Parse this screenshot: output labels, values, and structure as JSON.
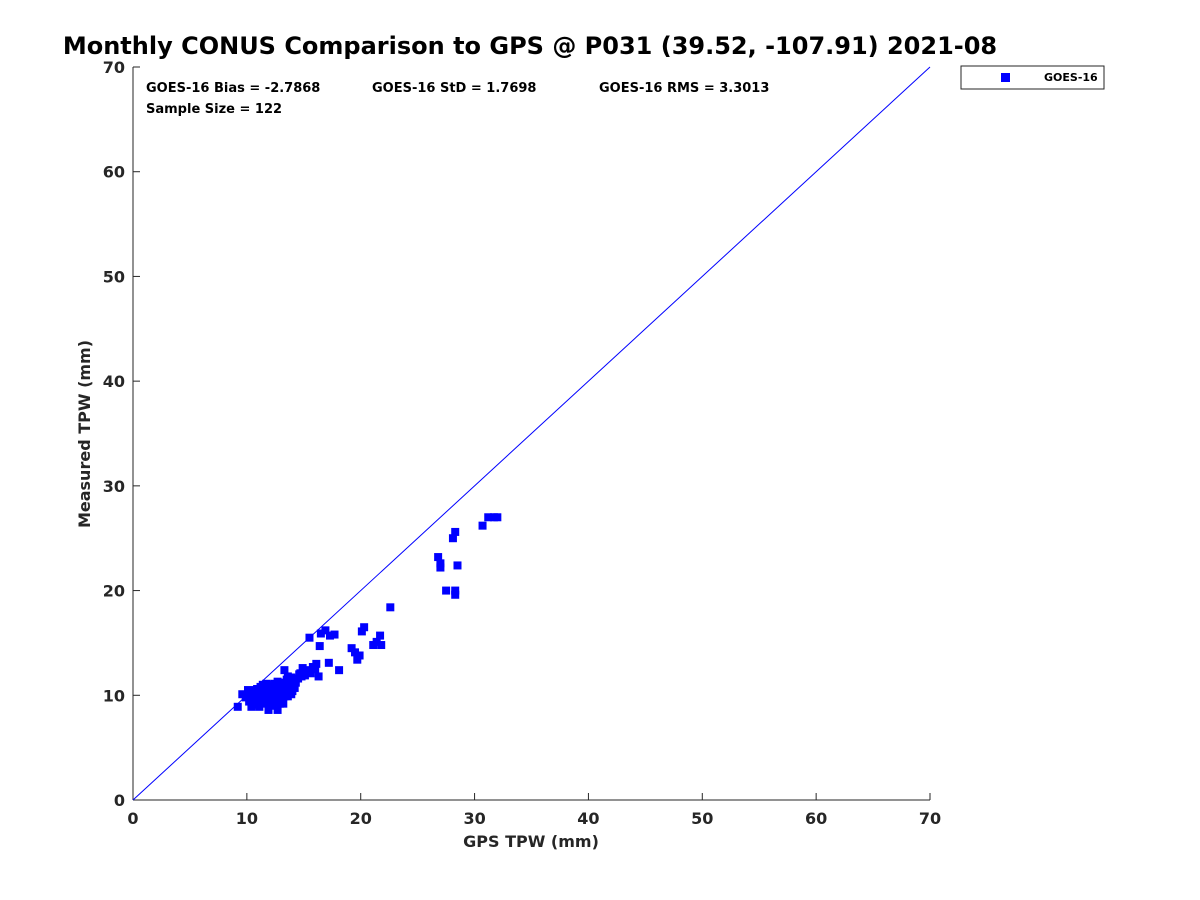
{
  "chart_data": {
    "type": "scatter",
    "title": "Monthly CONUS Comparison to GPS @ P031 (39.52, -107.91) 2021-08",
    "xlabel": "GPS TPW (mm)",
    "ylabel": "Measured TPW (mm)",
    "xlim": [
      0,
      70
    ],
    "ylim": [
      0,
      70
    ],
    "xticks": [
      "0",
      "10",
      "20",
      "30",
      "40",
      "50",
      "60",
      "70"
    ],
    "yticks": [
      "0",
      "10",
      "20",
      "30",
      "40",
      "50",
      "60",
      "70"
    ],
    "grid": false,
    "legend_position": "outside-top-right",
    "reference_line": {
      "from": [
        0,
        0
      ],
      "to": [
        70,
        70
      ],
      "color": "#0000ff"
    },
    "stats": {
      "bias": "GOES-16 Bias = -2.7868",
      "std": "GOES-16 StD = 1.7698",
      "rms": "GOES-16 RMS = 3.3013",
      "sample": "Sample Size = 122"
    },
    "series": [
      {
        "name": "GOES-16",
        "color": "#0000ff",
        "marker": "square",
        "points": [
          [
            9.2,
            8.9
          ],
          [
            9.6,
            10.1
          ],
          [
            9.9,
            9.8
          ],
          [
            10.1,
            10.5
          ],
          [
            10.2,
            9.4
          ],
          [
            10.4,
            8.9
          ],
          [
            10.5,
            10.2
          ],
          [
            10.6,
            9.7
          ],
          [
            10.8,
            10.5
          ],
          [
            10.9,
            9.1
          ],
          [
            11.0,
            10.0
          ],
          [
            11.1,
            8.9
          ],
          [
            11.2,
            10.8
          ],
          [
            11.3,
            9.6
          ],
          [
            11.4,
            10.3
          ],
          [
            11.5,
            9.2
          ],
          [
            11.6,
            10.6
          ],
          [
            11.7,
            11.1
          ],
          [
            11.8,
            9.9
          ],
          [
            11.9,
            8.6
          ],
          [
            12.0,
            10.4
          ],
          [
            12.1,
            9.5
          ],
          [
            12.2,
            11.0
          ],
          [
            12.3,
            10.1
          ],
          [
            12.4,
            9.3
          ],
          [
            12.5,
            10.7
          ],
          [
            12.6,
            9.9
          ],
          [
            12.7,
            8.6
          ],
          [
            12.8,
            11.2
          ],
          [
            12.9,
            10.4
          ],
          [
            13.0,
            9.6
          ],
          [
            13.1,
            10.9
          ],
          [
            13.2,
            9.2
          ],
          [
            13.3,
            12.4
          ],
          [
            13.4,
            10.6
          ],
          [
            13.5,
            11.5
          ],
          [
            13.6,
            9.9
          ],
          [
            13.7,
            10.3
          ],
          [
            13.8,
            11.0
          ],
          [
            13.9,
            10.1
          ],
          [
            14.0,
            11.4
          ],
          [
            14.2,
            10.7
          ],
          [
            14.5,
            11.6
          ],
          [
            14.7,
            12.1
          ],
          [
            14.9,
            12.6
          ],
          [
            15.1,
            11.9
          ],
          [
            15.3,
            12.4
          ],
          [
            15.5,
            15.5
          ],
          [
            15.8,
            12.7
          ],
          [
            16.1,
            13.0
          ],
          [
            16.3,
            11.8
          ],
          [
            16.4,
            14.7
          ],
          [
            16.5,
            15.9
          ],
          [
            16.9,
            16.2
          ],
          [
            17.2,
            13.1
          ],
          [
            17.3,
            15.7
          ],
          [
            17.7,
            15.8
          ],
          [
            18.1,
            12.4
          ],
          [
            19.2,
            14.5
          ],
          [
            19.5,
            14.1
          ],
          [
            19.7,
            13.4
          ],
          [
            19.9,
            13.8
          ],
          [
            20.1,
            16.1
          ],
          [
            20.3,
            16.5
          ],
          [
            21.1,
            14.8
          ],
          [
            21.4,
            15.1
          ],
          [
            21.7,
            15.7
          ],
          [
            21.8,
            14.8
          ],
          [
            22.6,
            18.4
          ],
          [
            26.8,
            23.2
          ],
          [
            27.0,
            22.6
          ],
          [
            27.0,
            22.2
          ],
          [
            27.5,
            20.0
          ],
          [
            28.1,
            25.0
          ],
          [
            28.3,
            25.6
          ],
          [
            28.3,
            20.0
          ],
          [
            28.3,
            19.6
          ],
          [
            28.5,
            22.4
          ],
          [
            30.7,
            26.2
          ],
          [
            31.2,
            27.0
          ],
          [
            31.7,
            27.0
          ],
          [
            32.0,
            27.0
          ],
          [
            10.0,
            9.9
          ],
          [
            10.3,
            10.0
          ],
          [
            10.7,
            9.5
          ],
          [
            11.0,
            10.6
          ],
          [
            11.3,
            10.0
          ],
          [
            11.6,
            9.4
          ],
          [
            11.9,
            10.8
          ],
          [
            12.2,
            9.8
          ],
          [
            12.5,
            9.4
          ],
          [
            12.8,
            10.0
          ],
          [
            13.1,
            10.4
          ],
          [
            13.4,
            11.2
          ],
          [
            13.7,
            10.9
          ],
          [
            14.0,
            10.4
          ],
          [
            10.4,
            10.4
          ],
          [
            10.9,
            10.6
          ],
          [
            11.4,
            11.0
          ],
          [
            11.8,
            10.2
          ],
          [
            12.3,
            10.8
          ],
          [
            12.7,
            11.3
          ],
          [
            13.0,
            10.8
          ],
          [
            13.5,
            10.2
          ],
          [
            14.3,
            11.2
          ],
          [
            14.8,
            11.8
          ],
          [
            15.2,
            12.2
          ],
          [
            15.6,
            12.1
          ],
          [
            16.0,
            12.5
          ],
          [
            12.1,
            9.0
          ],
          [
            11.2,
            9.7
          ],
          [
            10.6,
            9.3
          ],
          [
            12.9,
            9.2
          ],
          [
            13.3,
            9.9
          ],
          [
            11.7,
            10.5
          ],
          [
            10.2,
            10.0
          ],
          [
            12.6,
            10.6
          ],
          [
            13.9,
            11.7
          ],
          [
            11.5,
            10.9
          ],
          [
            12.4,
            11.1
          ],
          [
            14.6,
            12.0
          ],
          [
            13.6,
            11.8
          ]
        ]
      }
    ]
  }
}
